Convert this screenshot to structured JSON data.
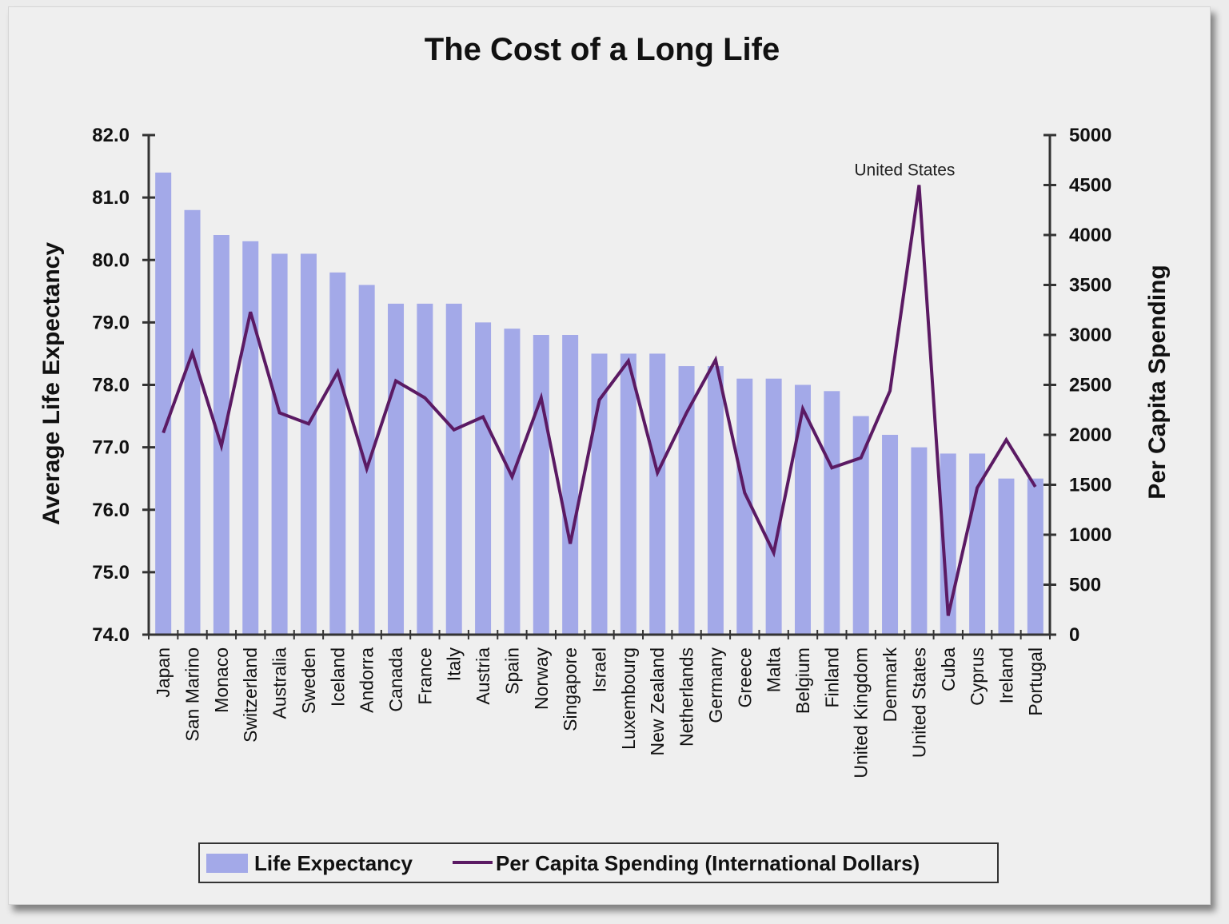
{
  "chart_data": {
    "type": "bar",
    "title": "The Cost of a Long Life",
    "xlabel": "",
    "ylabel": "Average Life Expectancy",
    "y2label": "Per Capita Spending",
    "ylim": [
      74.0,
      82.0
    ],
    "y2lim": [
      0,
      5000
    ],
    "yticks": [
      "74.0",
      "75.0",
      "76.0",
      "77.0",
      "78.0",
      "79.0",
      "80.0",
      "81.0",
      "82.0"
    ],
    "y2ticks": [
      "0",
      "500",
      "1000",
      "1500",
      "2000",
      "2500",
      "3000",
      "3500",
      "4000",
      "4500",
      "5000"
    ],
    "grid": false,
    "legend_position": "bottom",
    "categories": [
      "Japan",
      "San Marino",
      "Monaco",
      "Switzerland",
      "Australia",
      "Sweden",
      "Iceland",
      "Andorra",
      "Canada",
      "France",
      "Italy",
      "Austria",
      "Spain",
      "Norway",
      "Singapore",
      "Israel",
      "Luxembourg",
      "New Zealand",
      "Netherlands",
      "Germany",
      "Greece",
      "Malta",
      "Belgium",
      "Finland",
      "United Kingdom",
      "Denmark",
      "United States",
      "Cuba",
      "Cyprus",
      "Ireland",
      "Portugal"
    ],
    "series": [
      {
        "name": "Life Expectancy",
        "type": "bar",
        "axis": "left",
        "color": "#a3a9e8",
        "values": [
          81.4,
          80.8,
          80.4,
          80.3,
          80.1,
          80.1,
          79.8,
          79.6,
          79.3,
          79.3,
          79.3,
          79.0,
          78.9,
          78.8,
          78.8,
          78.5,
          78.5,
          78.5,
          78.3,
          78.3,
          78.1,
          78.1,
          78.0,
          77.9,
          77.5,
          77.2,
          77.0,
          76.9,
          76.9,
          76.5,
          76.5
        ]
      },
      {
        "name": "Per Capita Spending (International Dollars)",
        "type": "line",
        "axis": "right",
        "color": "#5b1a63",
        "values": [
          2020,
          2820,
          1890,
          3230,
          2220,
          2110,
          2630,
          1660,
          2540,
          2370,
          2050,
          2180,
          1580,
          2370,
          910,
          2350,
          2740,
          1620,
          2220,
          2750,
          1420,
          820,
          2260,
          1670,
          1770,
          2440,
          4500,
          190,
          1470,
          1950,
          1480
        ]
      }
    ],
    "annotations": [
      {
        "text": "United States",
        "category": "United States",
        "series": "Per Capita Spending (International Dollars)"
      }
    ]
  }
}
